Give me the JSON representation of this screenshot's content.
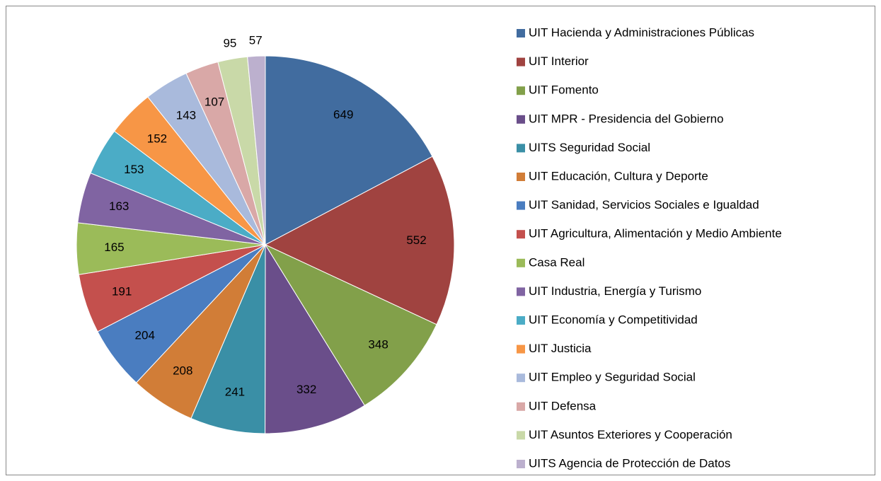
{
  "chart_data": {
    "type": "pie",
    "categories": [
      "UIT Hacienda y Administraciones Públicas",
      "UIT Interior",
      "UIT Fomento",
      "UIT MPR - Presidencia del Gobierno",
      "UITS Seguridad Social",
      "UIT Educación, Cultura y Deporte",
      "UIT Sanidad,  Servicios Sociales e Igualdad",
      "UIT Agricultura, Alimentación y Medio Ambiente",
      "Casa Real",
      "UIT Industria, Energía y Turismo",
      "UIT Economía y Competitividad",
      "UIT Justicia",
      "UIT Empleo y Seguridad Social",
      "UIT Defensa",
      "UIT Asuntos Exteriores y Cooperación",
      "UITS Agencia de Protección de Datos"
    ],
    "values": [
      649,
      552,
      348,
      332,
      241,
      208,
      204,
      191,
      165,
      163,
      153,
      152,
      143,
      107,
      95,
      57
    ],
    "colors": [
      "#416c9f",
      "#a04340",
      "#82a04a",
      "#6a4e8a",
      "#3a8fa6",
      "#d17d37",
      "#4a7dc0",
      "#c4504d",
      "#9bbb59",
      "#8064a2",
      "#4bacc6",
      "#f79646",
      "#a9badc",
      "#d9a8a7",
      "#c9d9a8",
      "#bcb0ce"
    ],
    "legend": "right"
  }
}
